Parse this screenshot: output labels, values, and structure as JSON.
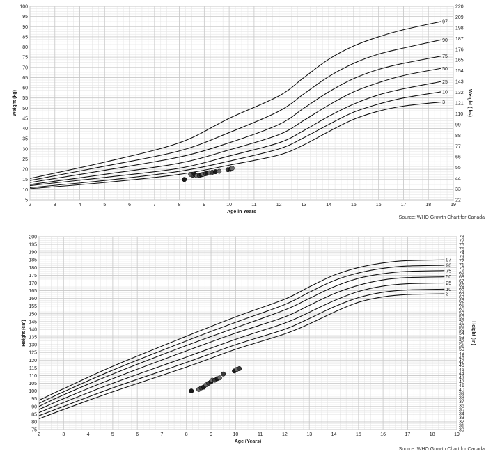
{
  "chart_data": [
    {
      "type": "line",
      "title": "",
      "xlabel": "Age in Years",
      "ylabel": "Weight (kg)",
      "ylabel_right": "Weight (lbs)",
      "source": "Source: WHO Growth Chart for Canada",
      "xlim": [
        2,
        19
      ],
      "ylim": [
        5,
        100
      ],
      "x_ticks": [
        2,
        3,
        4,
        5,
        6,
        7,
        8,
        9,
        10,
        11,
        12,
        13,
        14,
        15,
        16,
        17,
        18,
        19
      ],
      "y_ticks": [
        5,
        10,
        15,
        20,
        25,
        30,
        35,
        40,
        45,
        50,
        55,
        60,
        65,
        70,
        75,
        80,
        85,
        90,
        95,
        100
      ],
      "y_right_ticks": [
        "22",
        "33",
        "44",
        "55",
        "66",
        "77",
        "88",
        "99",
        "110",
        "121",
        "132",
        "143",
        "154",
        "165",
        "176",
        "187",
        "198",
        "209",
        "220"
      ],
      "grid": true,
      "percentiles": [
        "3",
        "10",
        "25",
        "50",
        "75",
        "90",
        "97"
      ],
      "series": [
        {
          "name": "3",
          "x": [
            2,
            5,
            8,
            10,
            12,
            13,
            14,
            15,
            16,
            17,
            18.5
          ],
          "y": [
            10.5,
            13.5,
            17.5,
            22,
            27,
            32,
            38.5,
            44.5,
            48.5,
            51,
            53
          ]
        },
        {
          "name": "10",
          "x": [
            2,
            5,
            8,
            10,
            12,
            13,
            14,
            15,
            16,
            17,
            18.5
          ],
          "y": [
            11,
            14.5,
            19,
            24,
            30,
            35.5,
            42,
            48,
            52,
            55,
            58
          ]
        },
        {
          "name": "25",
          "x": [
            2,
            5,
            8,
            10,
            12,
            13,
            14,
            15,
            16,
            17,
            18.5
          ],
          "y": [
            12,
            16,
            20.5,
            26.5,
            33,
            39,
            46,
            52,
            56.5,
            59.5,
            63
          ]
        },
        {
          "name": "50",
          "x": [
            2,
            5,
            8,
            10,
            12,
            13,
            14,
            15,
            16,
            17,
            18.5
          ],
          "y": [
            12.5,
            17.5,
            23,
            29.5,
            37,
            44,
            51.5,
            58,
            62.5,
            66,
            69.5
          ]
        },
        {
          "name": "75",
          "x": [
            2,
            5,
            8,
            10,
            12,
            13,
            14,
            15,
            16,
            17,
            18.5
          ],
          "y": [
            13.5,
            19.5,
            26,
            33,
            42,
            50,
            58,
            64.5,
            69,
            72,
            75.5
          ]
        },
        {
          "name": "90",
          "x": [
            2,
            5,
            8,
            10,
            12,
            13,
            14,
            15,
            16,
            17,
            18.5
          ],
          "y": [
            14.5,
            21.5,
            29,
            38,
            48.5,
            57,
            65.5,
            72,
            76.5,
            79.5,
            83.5
          ]
        },
        {
          "name": "97",
          "x": [
            2,
            5,
            8,
            10,
            12,
            13,
            14,
            15,
            16,
            17,
            18.5
          ],
          "y": [
            15.5,
            23.5,
            33,
            45,
            56,
            65,
            74,
            80.5,
            85,
            88.5,
            92.5
          ]
        }
      ],
      "points": {
        "x": [
          8.2,
          8.45,
          8.55,
          8.62,
          8.7,
          8.8,
          8.88,
          8.95,
          9.05,
          9.12,
          9.2,
          9.32,
          9.45,
          9.6,
          9.95,
          10.05,
          10.12
        ],
        "y": [
          15,
          17.5,
          17,
          17.5,
          16.8,
          17,
          17.3,
          17.5,
          17.8,
          18,
          18.3,
          18.5,
          18.8,
          19,
          19.8,
          20,
          20.5
        ]
      }
    },
    {
      "type": "line",
      "title": "",
      "xlabel": "Age (Years)",
      "ylabel": "Height (cm)",
      "ylabel_right": "Height (in)",
      "source": "Source: WHO Growth Chart for Canada",
      "xlim": [
        2,
        19
      ],
      "ylim": [
        75,
        200
      ],
      "x_ticks": [
        2,
        3,
        4,
        5,
        6,
        7,
        8,
        9,
        10,
        11,
        12,
        13,
        14,
        15,
        16,
        17,
        18,
        19
      ],
      "y_ticks": [
        75,
        80,
        85,
        90,
        95,
        100,
        105,
        110,
        115,
        120,
        125,
        130,
        135,
        140,
        145,
        150,
        155,
        160,
        165,
        170,
        175,
        180,
        185,
        190,
        195,
        200
      ],
      "y_right_ticks": [
        "30",
        "31",
        "32",
        "33",
        "34",
        "35",
        "36",
        "37",
        "38",
        "39",
        "40",
        "41",
        "42",
        "43",
        "44",
        "45",
        "46",
        "47",
        "48",
        "49",
        "50",
        "51",
        "52",
        "53",
        "54",
        "55",
        "56",
        "57",
        "58",
        "59",
        "60",
        "61",
        "62",
        "63",
        "64",
        "65",
        "66",
        "67",
        "68",
        "69",
        "70",
        "71",
        "72",
        "73",
        "74",
        "75",
        "76",
        "77",
        "78"
      ],
      "grid": true,
      "percentiles": [
        "3",
        "10",
        "25",
        "50",
        "75",
        "90",
        "97"
      ],
      "series": [
        {
          "name": "3",
          "x": [
            2,
            3,
            5,
            8,
            10,
            12,
            13,
            14,
            15,
            16,
            17,
            18.5
          ],
          "y": [
            82,
            88,
            99.5,
            115.5,
            127,
            137,
            143.5,
            151,
            157.5,
            161,
            162.5,
            163
          ]
        },
        {
          "name": "10",
          "x": [
            2,
            3,
            5,
            8,
            10,
            12,
            13,
            14,
            15,
            16,
            17,
            18.5
          ],
          "y": [
            84,
            90,
            102,
            118.5,
            130,
            140,
            147,
            154.5,
            160.5,
            164,
            165.5,
            166
          ]
        },
        {
          "name": "25",
          "x": [
            2,
            3,
            5,
            8,
            10,
            12,
            13,
            14,
            15,
            16,
            17,
            18.5
          ],
          "y": [
            86,
            92.5,
            105,
            122,
            133.5,
            144,
            151,
            158.5,
            164.5,
            168,
            169.5,
            170
          ]
        },
        {
          "name": "50",
          "x": [
            2,
            3,
            5,
            8,
            10,
            12,
            13,
            14,
            15,
            16,
            17,
            18.5
          ],
          "y": [
            88,
            95,
            108,
            126,
            137.5,
            148,
            155.5,
            163,
            168.5,
            172,
            173.5,
            174
          ]
        },
        {
          "name": "75",
          "x": [
            2,
            3,
            5,
            8,
            10,
            12,
            13,
            14,
            15,
            16,
            17,
            18.5
          ],
          "y": [
            90,
            97.5,
            111,
            129.5,
            141,
            152.5,
            160,
            167.5,
            173,
            176,
            177.5,
            178
          ]
        },
        {
          "name": "90",
          "x": [
            2,
            3,
            5,
            8,
            10,
            12,
            13,
            14,
            15,
            16,
            17,
            18.5
          ],
          "y": [
            92,
            99.5,
            113.5,
            132.5,
            144.5,
            156,
            164,
            171.5,
            176.5,
            179.5,
            181,
            181.5
          ]
        },
        {
          "name": "97",
          "x": [
            2,
            3,
            5,
            8,
            10,
            12,
            13,
            14,
            15,
            16,
            17,
            18.5
          ],
          "y": [
            94,
            101.5,
            116,
            135.5,
            148,
            159.5,
            167.5,
            175,
            180,
            183,
            184.5,
            185
          ]
        }
      ],
      "points": {
        "x": [
          8.2,
          8.5,
          8.6,
          8.7,
          8.8,
          8.9,
          9.0,
          9.05,
          9.15,
          9.25,
          9.35,
          9.5,
          9.95,
          10.05,
          10.15
        ],
        "y": [
          100,
          101,
          102,
          102.5,
          104,
          105,
          106,
          107,
          107,
          108,
          108.5,
          111,
          113,
          114,
          114.5
        ]
      }
    }
  ]
}
